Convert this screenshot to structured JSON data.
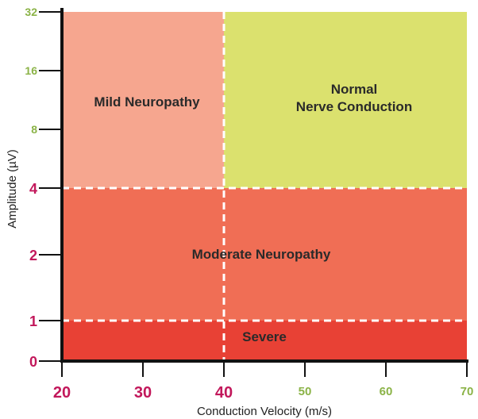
{
  "chart_data": {
    "type": "heatmap",
    "xlabel": "Conduction Velocity (m/s)",
    "ylabel": "Amplitude (µV)",
    "xlim": [
      20,
      70
    ],
    "ylim_ticks": [
      "0",
      "1",
      "2",
      "4",
      "8",
      "16",
      "32"
    ],
    "x_ticks": [
      {
        "value": 20,
        "label": "20",
        "color": "#c2185b"
      },
      {
        "value": 30,
        "label": "30",
        "color": "#c2185b"
      },
      {
        "value": 40,
        "label": "40",
        "color": "#c2185b"
      },
      {
        "value": 50,
        "label": "50",
        "color": "#8bb347"
      },
      {
        "value": 60,
        "label": "60",
        "color": "#8bb347"
      },
      {
        "value": 70,
        "label": "70",
        "color": "#8bb347"
      }
    ],
    "y_ticks": [
      {
        "index": 0,
        "label": "0",
        "color": "#c2185b"
      },
      {
        "index": 1,
        "label": "1",
        "color": "#c2185b"
      },
      {
        "index": 2,
        "label": "2",
        "color": "#c2185b"
      },
      {
        "index": 3,
        "label": "4",
        "color": "#c2185b"
      },
      {
        "index": 4,
        "label": "8",
        "color": "#8bb347"
      },
      {
        "index": 5,
        "label": "16",
        "color": "#8bb347"
      },
      {
        "index": 6,
        "label": "32",
        "color": "#8bb347"
      }
    ],
    "zones": [
      {
        "name": "Severe",
        "label_lines": [
          "Severe"
        ],
        "x_range": [
          20,
          70
        ],
        "y_range": [
          0,
          1
        ],
        "color": "#e84135"
      },
      {
        "name": "Moderate Neuropathy",
        "label_lines": [
          "Moderate Neuropathy"
        ],
        "x_range": [
          20,
          70
        ],
        "y_range": [
          1,
          3
        ],
        "color": "#f06e55"
      },
      {
        "name": "Mild Neuropathy",
        "label_lines": [
          "Mild Neuropathy"
        ],
        "x_range": [
          20,
          40
        ],
        "y_range": [
          3,
          6
        ],
        "color": "#f6a68f"
      },
      {
        "name": "Normal Nerve Conduction",
        "label_lines": [
          "Normal",
          "Nerve Conduction"
        ],
        "x_range": [
          40,
          70
        ],
        "y_range": [
          3,
          6
        ],
        "color": "#dbe16e"
      }
    ],
    "dividers": {
      "vertical_x": 40,
      "horizontal_y_indices": [
        1,
        3
      ],
      "style": "dashed",
      "color": "#ffffff"
    },
    "axis_color": "#111111",
    "grid": false,
    "legend": "none"
  }
}
